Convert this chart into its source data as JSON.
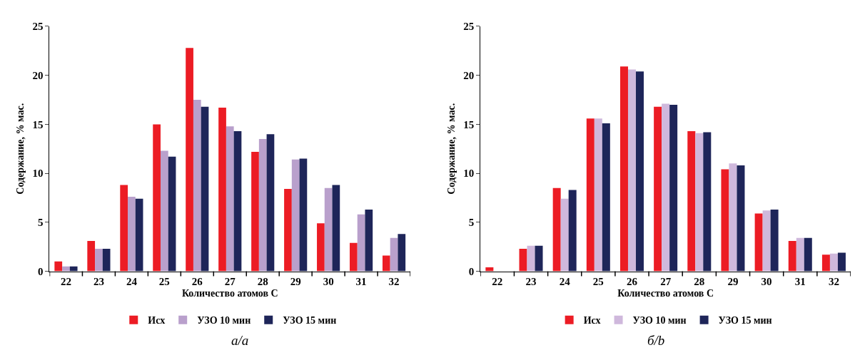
{
  "chart_data": [
    {
      "type": "bar",
      "xlabel": "Количество атомов С",
      "ylabel": "Содержание, % мас.",
      "categories": [
        "22",
        "23",
        "24",
        "25",
        "26",
        "27",
        "28",
        "29",
        "30",
        "31",
        "32"
      ],
      "series": [
        {
          "name": "Исх",
          "color": "#ec1c24",
          "values": [
            1.0,
            3.1,
            8.8,
            15.0,
            22.8,
            16.7,
            12.2,
            8.4,
            4.9,
            2.9,
            1.6
          ]
        },
        {
          "name": "УЗО 10 мин",
          "color": "#b9a0cc",
          "values": [
            0.5,
            2.3,
            7.6,
            12.3,
            17.5,
            14.8,
            13.5,
            11.4,
            8.5,
            5.8,
            3.4
          ]
        },
        {
          "name": "УЗО 15 мин",
          "color": "#1e2559",
          "values": [
            0.5,
            2.3,
            7.4,
            11.7,
            16.8,
            14.3,
            14.0,
            11.5,
            8.8,
            6.3,
            3.8
          ]
        }
      ],
      "ylim": [
        0,
        25
      ],
      "yticks": [
        0,
        5,
        10,
        15,
        20,
        25
      ],
      "legend": "bottom",
      "annotations": [
        "а/a"
      ]
    },
    {
      "type": "bar",
      "xlabel": "Количество атомов С",
      "ylabel": "Содержание, % мас.",
      "categories": [
        "22",
        "23",
        "24",
        "25",
        "26",
        "27",
        "28",
        "29",
        "30",
        "31",
        "32"
      ],
      "series": [
        {
          "name": "Исх",
          "color": "#ec1c24",
          "values": [
            0.4,
            2.3,
            8.5,
            15.6,
            20.9,
            16.8,
            14.3,
            10.4,
            5.9,
            3.1,
            1.7
          ]
        },
        {
          "name": "УЗО 10 мин",
          "color": "#cfb8dc",
          "values": [
            0,
            2.6,
            7.4,
            15.6,
            20.6,
            17.1,
            14.1,
            11.0,
            6.2,
            3.4,
            1.8
          ]
        },
        {
          "name": "УЗО 15 мин",
          "color": "#1e2559",
          "values": [
            0,
            2.6,
            8.3,
            15.1,
            20.4,
            17.0,
            14.2,
            10.8,
            6.3,
            3.4,
            1.9
          ]
        }
      ],
      "ylim": [
        0,
        25
      ],
      "yticks": [
        0,
        5,
        10,
        15,
        20,
        25
      ],
      "legend": "bottom",
      "annotations": [
        "б/b"
      ]
    }
  ]
}
